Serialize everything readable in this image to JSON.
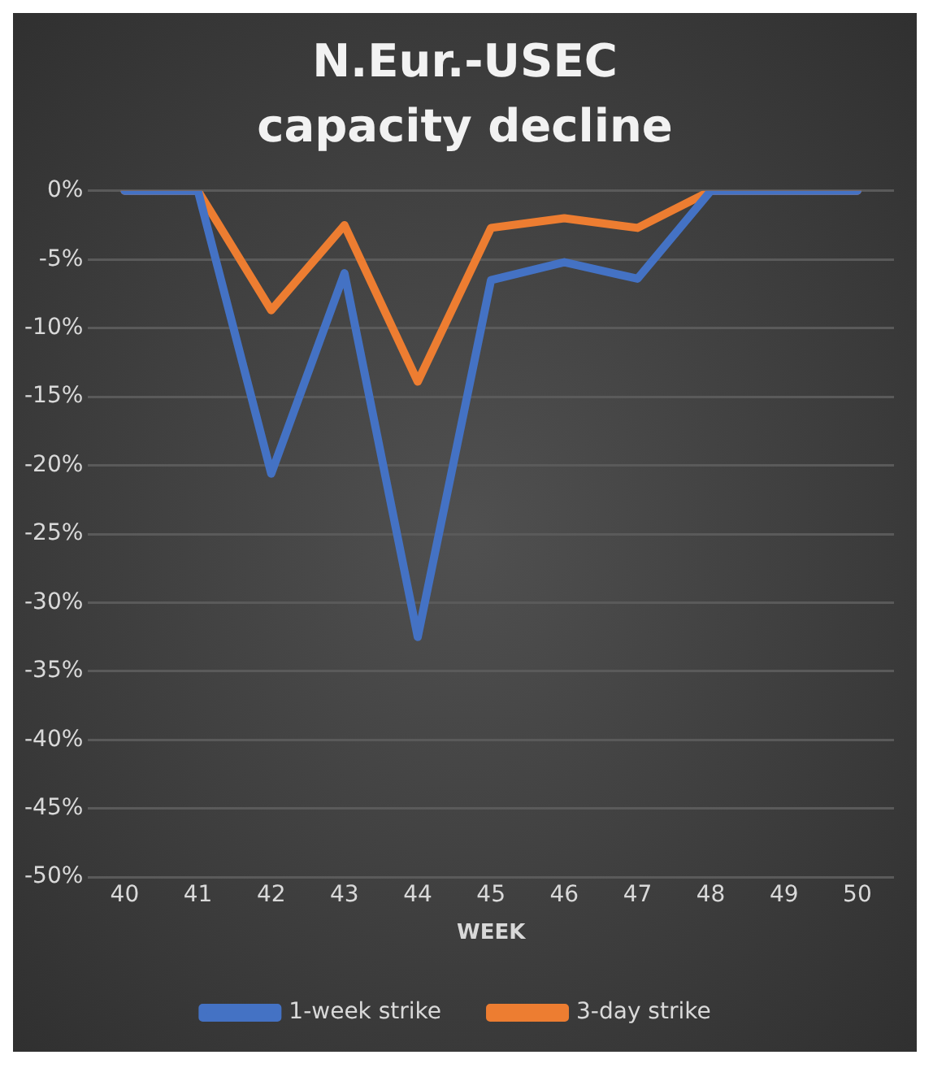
{
  "chart_data": {
    "type": "line",
    "title": "N.Eur.-USEC capacity decline",
    "xlabel": "WEEK",
    "categories": [
      "40",
      "41",
      "42",
      "43",
      "44",
      "45",
      "46",
      "47",
      "48",
      "49",
      "50"
    ],
    "series": [
      {
        "name": "1-week strike",
        "color": "#4472c4",
        "values": [
          0,
          0,
          -20.6,
          -6,
          -32.5,
          -6.5,
          -5.2,
          -6.4,
          0,
          0,
          0
        ]
      },
      {
        "name": "3-day strike",
        "color": "#ed7d31",
        "values": [
          0,
          0,
          -8.7,
          -2.5,
          -13.9,
          -2.7,
          -2,
          -2.7,
          0,
          0,
          0
        ]
      }
    ],
    "ylim": [
      -50,
      0
    ],
    "yticks": [
      {
        "value": 0,
        "label": "0%"
      },
      {
        "value": -5,
        "label": "-5%"
      },
      {
        "value": -10,
        "label": "-10%"
      },
      {
        "value": -15,
        "label": "-15%"
      },
      {
        "value": -20,
        "label": "-20%"
      },
      {
        "value": -25,
        "label": "-25%"
      },
      {
        "value": -30,
        "label": "-30%"
      },
      {
        "value": -35,
        "label": "-35%"
      },
      {
        "value": -40,
        "label": "-40%"
      },
      {
        "value": -45,
        "label": "-45%"
      },
      {
        "value": -50,
        "label": "-50%"
      }
    ],
    "grid": "y",
    "legend": "bottom",
    "marker": "none",
    "line_style": "solid"
  }
}
